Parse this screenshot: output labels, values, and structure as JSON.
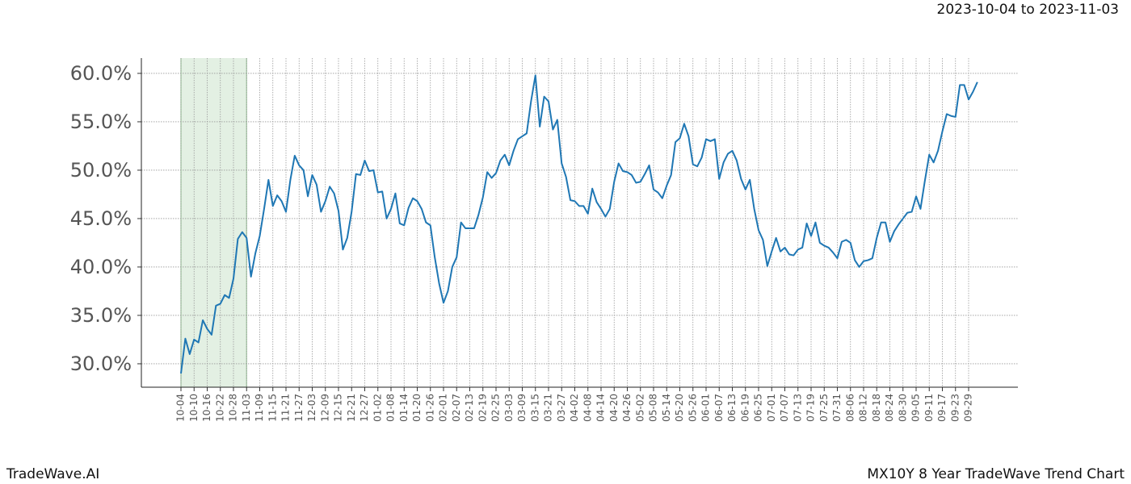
{
  "chart_data": {
    "type": "line",
    "title": "2023-10-04 to 2023-11-03",
    "footer_left": "TradeWave.AI",
    "footer_right": "MX10Y 8 Year TradeWave Trend Chart",
    "categories": [
      "10-04",
      null,
      null,
      "10-10",
      null,
      null,
      "10-16",
      null,
      null,
      "10-22",
      null,
      null,
      "10-28",
      null,
      null,
      "11-03",
      null,
      null,
      "11-09",
      null,
      null,
      "11-15",
      null,
      null,
      "11-21",
      null,
      null,
      "11-27",
      null,
      null,
      "12-03",
      null,
      null,
      "12-09",
      null,
      null,
      "12-15",
      null,
      null,
      "12-21",
      null,
      null,
      "12-27",
      null,
      null,
      "01-02",
      null,
      null,
      "01-08",
      null,
      null,
      "01-14",
      null,
      null,
      "01-20",
      null,
      null,
      "01-26",
      null,
      null,
      "02-01",
      null,
      null,
      "02-07",
      null,
      null,
      "02-13",
      null,
      null,
      "02-19",
      null,
      null,
      "02-25",
      null,
      null,
      "03-03",
      null,
      null,
      "03-09",
      null,
      null,
      "03-15",
      null,
      null,
      "03-21",
      null,
      null,
      "03-27",
      null,
      null,
      "04-02",
      null,
      null,
      "04-08",
      null,
      null,
      "04-14",
      null,
      null,
      "04-20",
      null,
      null,
      "04-26",
      null,
      null,
      "05-02",
      null,
      null,
      "05-08",
      null,
      null,
      "05-14",
      null,
      null,
      "05-20",
      null,
      null,
      "05-26",
      null,
      null,
      "06-01",
      null,
      null,
      "06-07",
      null,
      null,
      "06-13",
      null,
      null,
      "06-19",
      null,
      null,
      "06-25",
      null,
      null,
      "07-01",
      null,
      null,
      "07-07",
      null,
      null,
      "07-13",
      null,
      null,
      "07-19",
      null,
      null,
      "07-25",
      null,
      null,
      "07-31",
      null,
      null,
      "08-06",
      null,
      null,
      "08-12",
      null,
      null,
      "08-18",
      null,
      null,
      "08-24",
      null,
      null,
      "08-30",
      null,
      null,
      "09-05",
      null,
      null,
      "09-11",
      null,
      null,
      "09-17",
      null,
      null,
      "09-23",
      null,
      null,
      "09-29",
      null,
      null
    ],
    "values": [
      29.0,
      32.6,
      31.0,
      32.5,
      32.2,
      34.5,
      33.6,
      33.0,
      36.0,
      36.2,
      37.1,
      36.8,
      38.8,
      42.9,
      43.6,
      43.0,
      39.0,
      41.4,
      43.2,
      46.0,
      49.0,
      46.3,
      47.4,
      46.8,
      45.7,
      49.0,
      51.5,
      50.5,
      50.0,
      47.3,
      49.5,
      48.5,
      45.7,
      46.8,
      48.3,
      47.6,
      45.8,
      41.8,
      43.0,
      45.7,
      49.6,
      49.5,
      51.0,
      49.9,
      50.0,
      47.7,
      47.8,
      45.0,
      46.0,
      47.6,
      44.5,
      44.3,
      46.1,
      47.1,
      46.8,
      46.0,
      44.6,
      44.3,
      41.0,
      38.3,
      36.3,
      37.5,
      40.0,
      41.0,
      44.6,
      44.0,
      44.0,
      44.0,
      45.4,
      47.2,
      49.8,
      49.2,
      49.7,
      51.0,
      51.6,
      50.5,
      52.0,
      53.2,
      53.5,
      53.8,
      57.1,
      59.8,
      54.5,
      57.6,
      57.1,
      54.2,
      55.2,
      50.7,
      49.3,
      46.9,
      46.8,
      46.3,
      46.3,
      45.5,
      48.1,
      46.7,
      46.0,
      45.2,
      46.0,
      48.8,
      50.7,
      49.9,
      49.8,
      49.5,
      48.7,
      48.8,
      49.6,
      50.5,
      48.0,
      47.7,
      47.1,
      48.4,
      49.5,
      52.9,
      53.3,
      54.8,
      53.5,
      50.6,
      50.4,
      51.3,
      53.2,
      53.0,
      53.2,
      49.1,
      50.8,
      51.7,
      52.0,
      51.0,
      49.1,
      48.0,
      49.0,
      46.0,
      43.8,
      42.8,
      40.1,
      41.6,
      43.0,
      41.6,
      42.0,
      41.3,
      41.2,
      41.8,
      42.0,
      44.5,
      43.2,
      44.6,
      42.5,
      42.2,
      42.0,
      41.5,
      40.9,
      42.6,
      42.8,
      42.5,
      40.7,
      40.0,
      40.6,
      40.7,
      40.9,
      43.0,
      44.6,
      44.6,
      42.6,
      43.7,
      44.4,
      45.0,
      45.6,
      45.7,
      47.3,
      46.0,
      48.9,
      51.6,
      50.8,
      52.0,
      54.0,
      55.8,
      55.6,
      55.5,
      58.8,
      58.8,
      57.3,
      58.1,
      59.1
    ],
    "color": "#1f77b4",
    "highlight": {
      "from": "10-04",
      "to": "11-03",
      "color": "#e3f0e3"
    },
    "ylim": [
      27.58,
      61.58
    ],
    "yticks": [
      {
        "value": 30,
        "label": "30.0%"
      },
      {
        "value": 35,
        "label": "35.0%"
      },
      {
        "value": 40,
        "label": "40.0%"
      },
      {
        "value": 45,
        "label": "45.0%"
      },
      {
        "value": 50,
        "label": "50.0%"
      },
      {
        "value": 55,
        "label": "55.0%"
      },
      {
        "value": 60,
        "label": "60.0%"
      }
    ],
    "grid": true
  }
}
